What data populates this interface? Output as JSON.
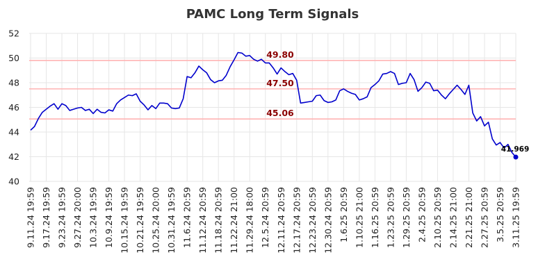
{
  "chart_data": {
    "type": "line",
    "title": "PAMC Long Term Signals",
    "xlabel": "",
    "ylabel": "",
    "ylim": [
      40,
      52
    ],
    "yticks": [
      40,
      42,
      44,
      46,
      48,
      50,
      52
    ],
    "grid": true,
    "legend": "none",
    "xtick_labels": [
      "9.11.24 19:59",
      "9.17.24 19:59",
      "9.23.24 19:59",
      "9.27.24 20:00",
      "10.3.24 19:59",
      "10.9.24 19:59",
      "10.15.24 19:59",
      "10.21.24 19:59",
      "10.25.24 20:00",
      "10.31.24 19:59",
      "11.6.24 20:59",
      "11.12.24 20:59",
      "11.18.24 20:59",
      "11.22.24 21:00",
      "11.29.24 18:00",
      "12.5.24 20:59",
      "12.11.24 20:59",
      "12.17.24 20:59",
      "12.23.24 20:59",
      "12.30.24 20:59",
      "1.6.25 20:59",
      "1.10.25 21:00",
      "1.16.25 20:59",
      "1.23.25 20:59",
      "1.29.25 20:59",
      "2.4.25 20:59",
      "2.10.25 20:59",
      "2.14.25 21:00",
      "2.21.25 21:00",
      "2.27.25 20:59",
      "3.5.25 20:59",
      "3.11.25 19:59"
    ],
    "reference_lines": [
      {
        "value": 49.8,
        "label": "49.80"
      },
      {
        "value": 47.5,
        "label": "47.50"
      },
      {
        "value": 45.06,
        "label": "45.06"
      }
    ],
    "last_value_label": "41.969",
    "series": [
      {
        "values": [
          44.15,
          44.45,
          45.1,
          45.6,
          45.85,
          46.1,
          46.3,
          45.85,
          46.3,
          46.15,
          45.75,
          45.85,
          45.95,
          46.0,
          45.75,
          45.85,
          45.5,
          45.85,
          45.6,
          45.55,
          45.8,
          45.7,
          46.3,
          46.6,
          46.8,
          47.0,
          46.95,
          47.1,
          46.5,
          46.2,
          45.8,
          46.15,
          45.9,
          46.35,
          46.35,
          46.3,
          45.95,
          45.9,
          45.95,
          46.7,
          48.5,
          48.4,
          48.8,
          49.35,
          49.05,
          48.8,
          48.25,
          48.0,
          48.15,
          48.2,
          48.6,
          49.3,
          49.85,
          50.45,
          50.4,
          50.15,
          50.2,
          49.9,
          49.75,
          49.9,
          49.6,
          49.6,
          49.2,
          48.7,
          49.2,
          48.9,
          48.65,
          48.75,
          48.2,
          46.35,
          46.4,
          46.45,
          46.5,
          46.95,
          47.0,
          46.55,
          46.4,
          46.45,
          46.6,
          47.35,
          47.5,
          47.3,
          47.15,
          47.05,
          46.6,
          46.7,
          46.85,
          47.6,
          47.85,
          48.15,
          48.7,
          48.75,
          48.9,
          48.75,
          47.85,
          47.95,
          48.0,
          48.75,
          48.25,
          47.3,
          47.6,
          48.05,
          47.95,
          47.35,
          47.4,
          47.0,
          46.7,
          47.1,
          47.45,
          47.8,
          47.45,
          47.05,
          47.8,
          45.55,
          44.9,
          45.25,
          44.5,
          44.8,
          43.45,
          42.95,
          43.15,
          42.7,
          43.0,
          42.35,
          41.969
        ]
      }
    ]
  }
}
